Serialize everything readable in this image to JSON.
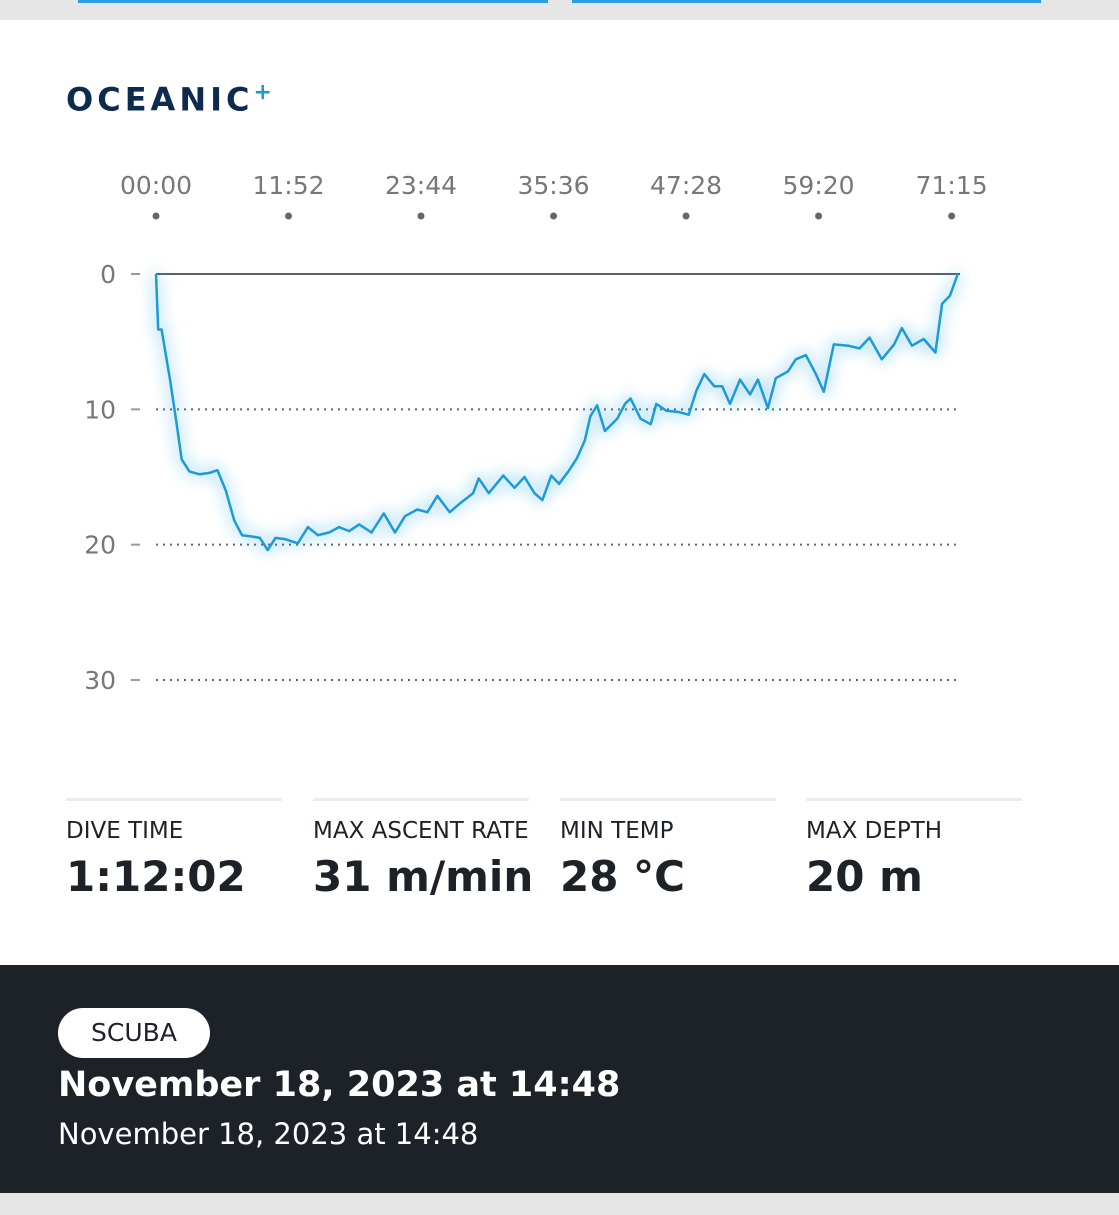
{
  "header": {
    "logo": "OCEANIC",
    "logo_mark": "+"
  },
  "chart_data": {
    "type": "line",
    "color": "#1a9bd7",
    "grid": true,
    "y_inverted": true,
    "x": [
      0,
      0.2,
      0.5,
      1.25,
      1.8,
      2.3,
      3.0,
      3.9,
      4.8,
      5.5,
      6.25,
      7.0,
      7.7,
      8.6,
      9.3,
      10.0,
      10.7,
      11.6,
      12.7,
      13.6,
      14.5,
      15.5,
      16.4,
      17.3,
      18.2,
      19.3,
      20.4,
      21.4,
      22.3,
      23.4,
      24.3,
      25.2,
      26.3,
      27.3,
      28.4,
      28.9,
      29.8,
      31.1,
      32.1,
      33.0,
      33.9,
      34.6,
      35.4,
      36.1,
      37.0,
      37.7,
      38.4,
      38.9,
      39.5,
      40.2,
      41.3,
      42.0,
      42.5,
      43.4,
      44.3,
      44.8,
      45.7,
      46.8,
      47.7,
      48.4,
      49.1,
      50.0,
      50.7,
      51.4,
      52.3,
      53.2,
      53.9,
      54.8,
      55.5,
      56.6,
      57.3,
      58.2,
      59.1,
      59.8,
      60.7,
      62.0,
      63.0,
      63.9,
      65.0,
      66.1,
      66.8,
      67.7,
      68.75,
      69.8,
      70.4,
      71.1,
      71.8
    ],
    "values": [
      0,
      4.1,
      4.1,
      7.8,
      10.8,
      13.7,
      14.6,
      14.8,
      14.7,
      14.5,
      16.0,
      18.2,
      19.3,
      19.4,
      19.5,
      20.4,
      19.5,
      19.6,
      19.9,
      18.7,
      19.3,
      19.1,
      18.7,
      19.0,
      18.5,
      19.1,
      17.7,
      19.1,
      17.9,
      17.4,
      17.6,
      16.4,
      17.6,
      16.9,
      16.2,
      15.1,
      16.2,
      14.9,
      15.8,
      15.0,
      16.2,
      16.7,
      14.9,
      15.5,
      14.5,
      13.6,
      12.3,
      10.5,
      9.7,
      11.6,
      10.7,
      9.6,
      9.2,
      10.7,
      11.1,
      9.6,
      10.1,
      10.2,
      10.4,
      8.6,
      7.4,
      8.3,
      8.3,
      9.6,
      7.8,
      8.9,
      7.8,
      9.9,
      7.7,
      7.2,
      6.3,
      6.0,
      7.4,
      8.7,
      5.2,
      5.3,
      5.5,
      4.7,
      6.3,
      5.2,
      4.0,
      5.3,
      4.8,
      5.8,
      2.2,
      1.6,
      0
    ],
    "xlim": [
      0,
      72
    ],
    "xticks": [
      {
        "value": 0,
        "label": "00:00"
      },
      {
        "value": 11.867,
        "label": "11:52"
      },
      {
        "value": 23.733,
        "label": "23:44"
      },
      {
        "value": 35.6,
        "label": "35:36"
      },
      {
        "value": 47.467,
        "label": "47:28"
      },
      {
        "value": 59.333,
        "label": "59:20"
      },
      {
        "value": 71.25,
        "label": "71:15"
      }
    ],
    "ylim": [
      0,
      30
    ],
    "yticks": [
      0,
      10,
      20,
      30
    ]
  },
  "stats": [
    {
      "label": "DIVE TIME",
      "value": "1:12:02"
    },
    {
      "label": "MAX ASCENT RATE",
      "value": "31 m/min"
    },
    {
      "label": "MIN TEMP",
      "value": "28 °C"
    },
    {
      "label": "MAX DEPTH",
      "value": "20 m"
    }
  ],
  "footer": {
    "badge": "SCUBA",
    "title": "November 18, 2023 at 14:48",
    "subtitle": "November 18, 2023 at 14:48"
  }
}
